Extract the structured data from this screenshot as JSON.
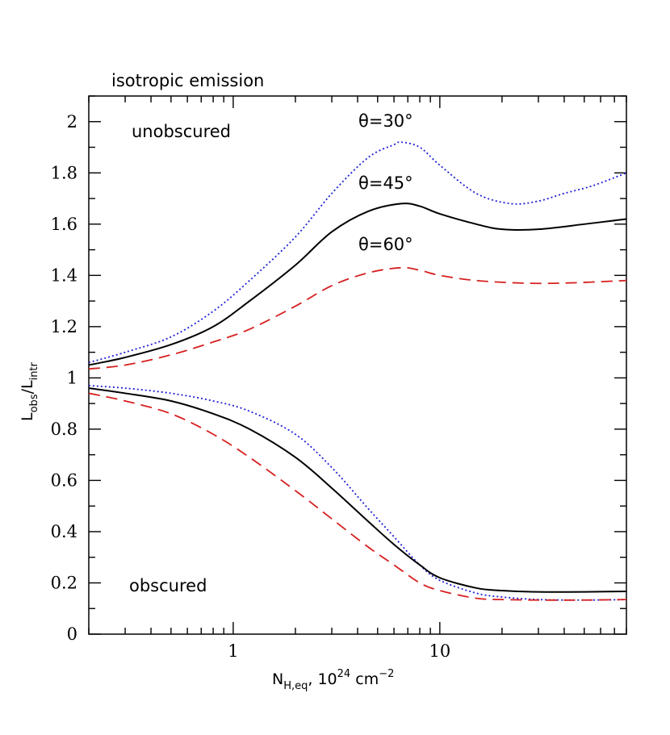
{
  "chart_data": {
    "type": "line",
    "title": "isotropic emission",
    "xlabel": {
      "main": "N",
      "sub": "H,eq",
      "rest": ",  10",
      "sup": "24",
      "tail": " cm",
      "sup2": "−2"
    },
    "ylabel": {
      "main": "L",
      "sub1": "obs",
      "sep": "/L",
      "sub2": "intr"
    },
    "x_scale": "log",
    "xlim": [
      0.2,
      80
    ],
    "ylim": [
      0,
      2.1
    ],
    "x_ticklabels": [
      {
        "value": 1,
        "label": "1"
      },
      {
        "value": 10,
        "label": "10"
      }
    ],
    "y_ticks": [
      0,
      0.2,
      0.4,
      0.6,
      0.8,
      1,
      1.2,
      1.4,
      1.6,
      1.8,
      2
    ],
    "y_ticklabels": [
      "0",
      "0.2",
      "0.4",
      "0.6",
      "0.8",
      "1",
      "1.2",
      "1.4",
      "1.6",
      "1.8",
      "2"
    ],
    "annotations": {
      "unobscured": "unobscured",
      "obscured": "obscured",
      "theta30": "θ=30°",
      "theta45": "θ=45°",
      "theta60": "θ=60°"
    },
    "grid": false,
    "series": [
      {
        "group": "unobscured",
        "style": "dotted",
        "color": "#1f1fd6",
        "x": [
          0.2,
          0.3,
          0.5,
          0.8,
          1.2,
          2,
          3,
          4.5,
          6,
          6.5,
          8,
          10,
          15,
          22,
          30,
          40,
          55,
          80
        ],
        "y": [
          1.06,
          1.1,
          1.16,
          1.26,
          1.38,
          1.55,
          1.72,
          1.86,
          1.91,
          1.92,
          1.9,
          1.83,
          1.72,
          1.68,
          1.69,
          1.72,
          1.75,
          1.8
        ]
      },
      {
        "group": "unobscured",
        "style": "solid",
        "color": "#000000",
        "x": [
          0.2,
          0.3,
          0.5,
          0.8,
          1.2,
          2,
          3,
          4.5,
          6.5,
          8,
          10,
          15,
          20,
          30,
          50,
          80
        ],
        "y": [
          1.05,
          1.08,
          1.13,
          1.2,
          1.3,
          1.44,
          1.57,
          1.65,
          1.68,
          1.67,
          1.64,
          1.6,
          1.58,
          1.58,
          1.6,
          1.62
        ]
      },
      {
        "group": "unobscured",
        "style": "dashed",
        "color": "#d62020",
        "x": [
          0.2,
          0.3,
          0.5,
          0.8,
          1.2,
          2,
          3,
          4.5,
          6.5,
          8,
          10,
          15,
          25,
          40,
          80
        ],
        "y": [
          1.035,
          1.05,
          1.09,
          1.14,
          1.19,
          1.28,
          1.36,
          1.41,
          1.43,
          1.42,
          1.4,
          1.38,
          1.37,
          1.37,
          1.38
        ]
      },
      {
        "group": "obscured",
        "style": "dotted",
        "color": "#1f1fd6",
        "x": [
          0.2,
          0.3,
          0.5,
          0.8,
          1.2,
          2,
          3,
          4.5,
          6,
          8,
          10,
          15,
          20,
          30,
          50,
          80
        ],
        "y": [
          0.97,
          0.96,
          0.94,
          0.91,
          0.87,
          0.78,
          0.65,
          0.49,
          0.38,
          0.27,
          0.21,
          0.16,
          0.145,
          0.135,
          0.133,
          0.135
        ]
      },
      {
        "group": "obscured",
        "style": "solid",
        "color": "#000000",
        "x": [
          0.2,
          0.3,
          0.5,
          0.8,
          1.2,
          2,
          3,
          4.5,
          6,
          8,
          10,
          15,
          20,
          30,
          50,
          80
        ],
        "y": [
          0.96,
          0.94,
          0.91,
          0.86,
          0.8,
          0.69,
          0.57,
          0.44,
          0.35,
          0.27,
          0.22,
          0.18,
          0.17,
          0.165,
          0.165,
          0.167
        ]
      },
      {
        "group": "obscured",
        "style": "dashed",
        "color": "#d62020",
        "x": [
          0.2,
          0.3,
          0.5,
          0.8,
          1.2,
          2,
          3,
          4.5,
          6,
          8,
          10,
          15,
          20,
          30,
          50,
          80
        ],
        "y": [
          0.94,
          0.91,
          0.86,
          0.78,
          0.69,
          0.56,
          0.45,
          0.34,
          0.27,
          0.2,
          0.17,
          0.14,
          0.135,
          0.133,
          0.133,
          0.135
        ]
      }
    ]
  }
}
